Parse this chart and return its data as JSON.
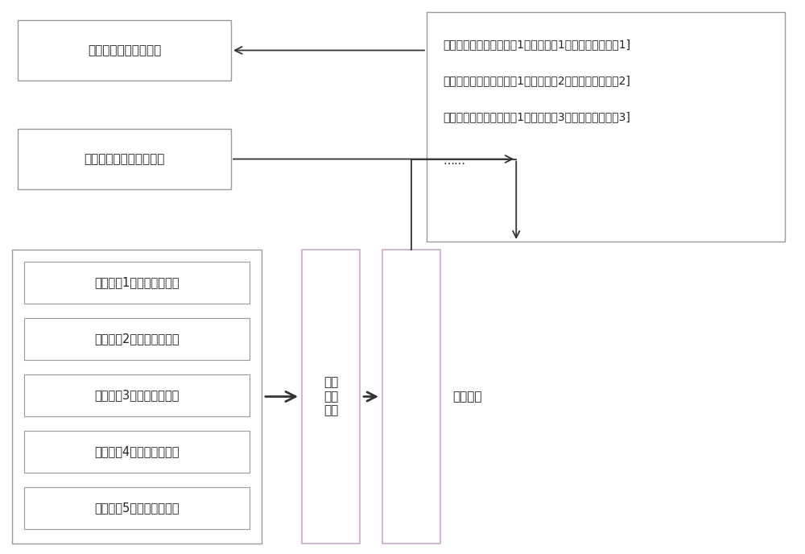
{
  "bg_color": "#ffffff",
  "box_edge_color": "#999999",
  "box_edge_color_purple": "#c8a8c8",
  "text_color": "#222222",
  "arrow_color": "#333333",
  "font_size": 11,
  "box1_label": "资源装备资源配置信息",
  "box2_label": "目标对象的个体标识信息",
  "related_labels": [
    "相关对象1的属性标识信息",
    "相关对象2的属性标识信息",
    "相关对象3的属性标识信息",
    "相关对象4的属性标识信息",
    "相关对象5的属性标识信息"
  ],
  "combine_label": "组合\n标识\n信息",
  "category_label": "组合类别",
  "db_lines": [
    "［（对象的个体标识信息1，组合类别1），资源配置信息1]",
    "［（对象的个体标识信息1，组合类别2），资源配置信息2]",
    "［（对象的个体标识信息1，组合类别3），资源配置信息3]",
    "……"
  ]
}
